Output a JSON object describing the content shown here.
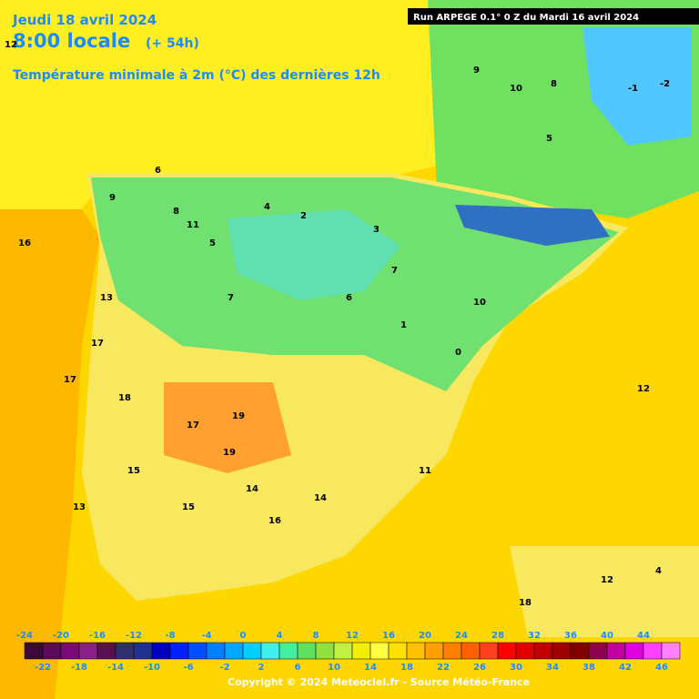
{
  "header": {
    "date": "Jeudi 18 avril 2024",
    "time": "8:00 locale",
    "lead": "(+ 54h)",
    "title": "Température minimale à 2m (°C) des dernières 12h",
    "run": "Run ARPEGE 0.1° 0 Z du Mardi 16 avril 2024"
  },
  "colorbar": {
    "range": [
      -24,
      48
    ],
    "top_labels": [
      -24,
      -20,
      -16,
      -12,
      -8,
      -4,
      0,
      4,
      8,
      12,
      16,
      20,
      24,
      28,
      32,
      36,
      40,
      44
    ],
    "bottom_labels": [
      -22,
      -18,
      -14,
      -10,
      -6,
      -2,
      2,
      6,
      10,
      14,
      18,
      22,
      26,
      30,
      34,
      38,
      42,
      46
    ],
    "colors": [
      "#3a0a3a",
      "#5a0a5a",
      "#7a0a7a",
      "#8a208a",
      "#5a1050",
      "#303070",
      "#203090",
      "#0000c0",
      "#0020ff",
      "#0050ff",
      "#0080ff",
      "#00a8ff",
      "#00d0ff",
      "#40f0f0",
      "#40f0a0",
      "#60e060",
      "#90e040",
      "#c0f040",
      "#f0f000",
      "#ffff40",
      "#ffe000",
      "#ffc000",
      "#ffa000",
      "#ff8000",
      "#ff6000",
      "#ff4020",
      "#ff0000",
      "#e00000",
      "#c00000",
      "#a00000",
      "#800000",
      "#900050",
      "#c000a0",
      "#e000e0",
      "#ff40ff",
      "#ff80ff"
    ]
  },
  "map_labels": [
    "12",
    "9",
    "6",
    "8",
    "5",
    "2",
    "4",
    "3",
    "7",
    "11",
    "13",
    "15",
    "17",
    "18",
    "19",
    "10",
    "14",
    "16",
    "1",
    "0",
    "-1",
    "-2",
    "9",
    "10",
    "8",
    "5",
    "6",
    "7",
    "4",
    "12",
    "15",
    "16",
    "17",
    "13",
    "14",
    "11",
    "18",
    "12",
    "19",
    "17"
  ],
  "footer": {
    "copyright": "Copyright © 2024 Meteociel.fr - Source Météo-France"
  }
}
